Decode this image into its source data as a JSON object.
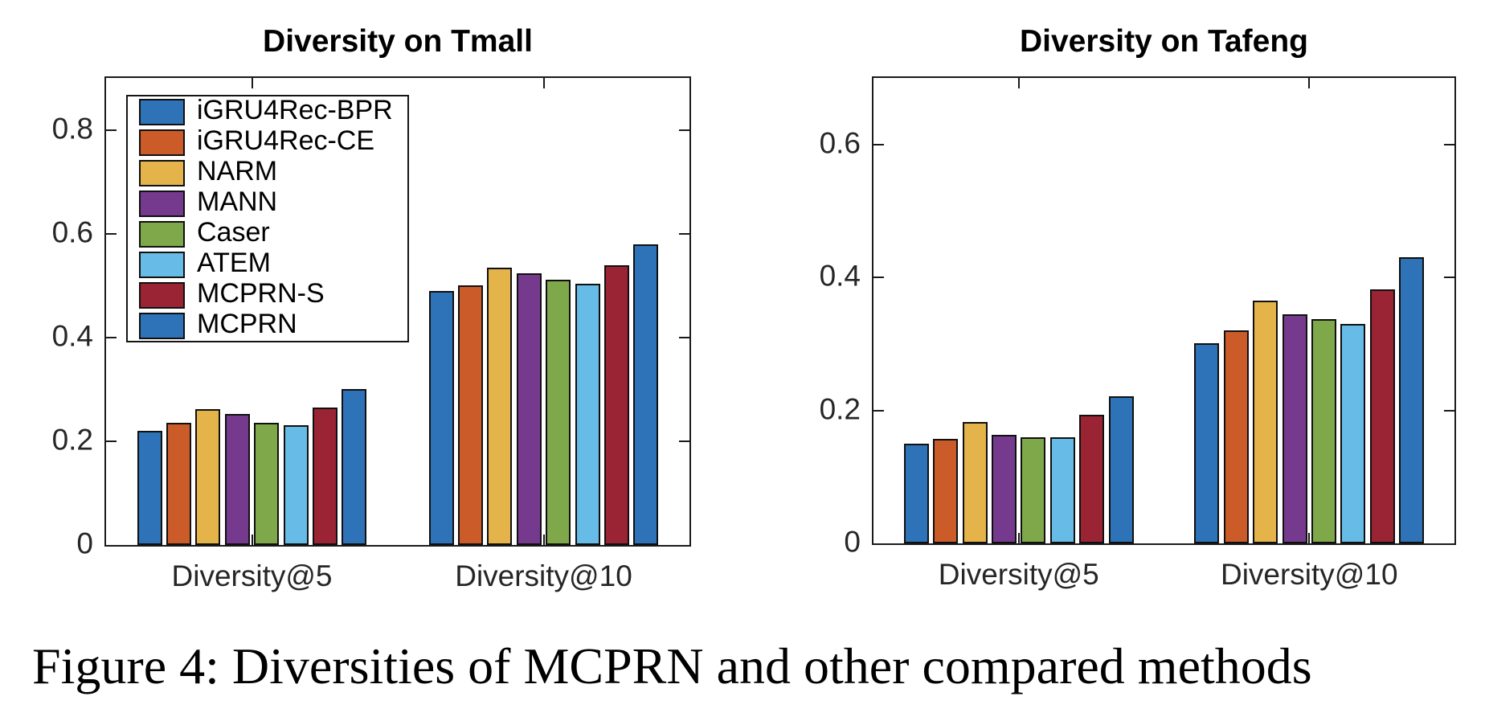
{
  "figure": {
    "caption": "Figure 4: Diversities of MCPRN and other compared methods"
  },
  "series_colors": [
    "#2E73B7",
    "#CC5B2A",
    "#E4B34A",
    "#753A8E",
    "#7FA84B",
    "#67BCE7",
    "#9A2433",
    "#2E73B7"
  ],
  "axis_color": "#1a1a1a",
  "chart_data": [
    {
      "type": "bar",
      "title": "Diversity on Tmall",
      "categories": [
        "Diversity@5",
        "Diversity@10"
      ],
      "series": [
        {
          "name": "iGRU4Rec-BPR",
          "values": [
            0.22,
            0.49
          ]
        },
        {
          "name": "iGRU4Rec-CE",
          "values": [
            0.235,
            0.501
          ]
        },
        {
          "name": "NARM",
          "values": [
            0.262,
            0.535
          ]
        },
        {
          "name": "MANN",
          "values": [
            0.252,
            0.524
          ]
        },
        {
          "name": "Caser",
          "values": [
            0.235,
            0.511
          ]
        },
        {
          "name": "ATEM",
          "values": [
            0.231,
            0.504
          ]
        },
        {
          "name": "MCPRN-S",
          "values": [
            0.265,
            0.539
          ]
        },
        {
          "name": "MCPRN",
          "values": [
            0.301,
            0.58
          ]
        }
      ],
      "ylim": [
        0,
        0.9
      ],
      "yticks": [
        0,
        0.2,
        0.4,
        0.6,
        0.8
      ],
      "ytick_labels": [
        "0",
        "0.2",
        "0.4",
        "0.6",
        "0.8"
      ],
      "grid": false,
      "legend": true,
      "legend_position": "top-left"
    },
    {
      "type": "bar",
      "title": "Diversity on Tafeng",
      "categories": [
        "Diversity@5",
        "Diversity@10"
      ],
      "series": [
        {
          "name": "iGRU4Rec-BPR",
          "values": [
            0.15,
            0.301
          ]
        },
        {
          "name": "iGRU4Rec-CE",
          "values": [
            0.157,
            0.321
          ]
        },
        {
          "name": "NARM",
          "values": [
            0.183,
            0.365
          ]
        },
        {
          "name": "MANN",
          "values": [
            0.163,
            0.345
          ]
        },
        {
          "name": "Caser",
          "values": [
            0.159,
            0.337
          ]
        },
        {
          "name": "ATEM",
          "values": [
            0.159,
            0.33
          ]
        },
        {
          "name": "MCPRN-S",
          "values": [
            0.193,
            0.382
          ]
        },
        {
          "name": "MCPRN",
          "values": [
            0.221,
            0.43
          ]
        }
      ],
      "ylim": [
        0,
        0.7
      ],
      "yticks": [
        0,
        0.2,
        0.4,
        0.6
      ],
      "ytick_labels": [
        "0",
        "0.2",
        "0.4",
        "0.6"
      ],
      "grid": false,
      "legend": false
    }
  ]
}
